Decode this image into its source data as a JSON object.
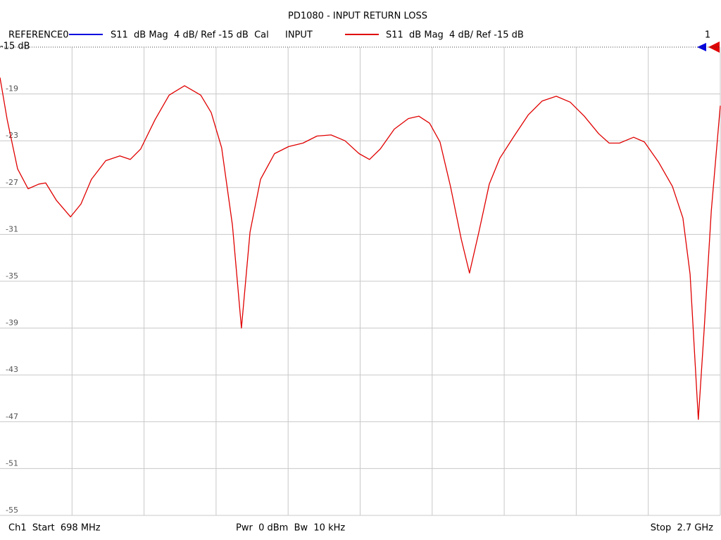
{
  "chart_data": {
    "type": "line",
    "title": "PD1080 - INPUT RETURN LOSS",
    "series": [
      {
        "name": "REFERENCE0",
        "color": "#0000e0",
        "label": "S11  dB Mag  4 dB/ Ref -15 dB  Cal"
      },
      {
        "name": "INPUT",
        "color": "#e00000",
        "label": "S11  dB Mag  4 dB/ Ref -15 dB",
        "values": [
          -17.6,
          -21.2,
          -25.4,
          -27.1,
          -26.7,
          -26.6,
          -28.1,
          -29.5,
          -28.4,
          -26.3,
          -24.7,
          -24.3,
          -24.6,
          -23.7,
          -21.2,
          -19.1,
          -18.3,
          -19.1,
          -20.6,
          -23.6,
          -30.2,
          -39.0,
          -30.8,
          -26.3,
          -24.1,
          -23.5,
          -23.2,
          -22.6,
          -22.5,
          -23.0,
          -24.1,
          -24.6,
          -23.7,
          -22.0,
          -21.1,
          -20.9,
          -21.5,
          -23.1,
          -26.9,
          -31.4,
          -34.3,
          -30.8,
          -26.7,
          -24.5,
          -22.6,
          -20.8,
          -19.6,
          -19.2,
          -19.7,
          -20.9,
          -22.4,
          -23.2,
          -23.2,
          -22.7,
          -23.1,
          -24.8,
          -26.9,
          -29.6,
          -34.4,
          -46.8,
          -39.2,
          -29.0,
          -20.0
        ]
      }
    ],
    "x": [
      698,
      718,
      747,
      776,
      806,
      825,
      855,
      894,
      923,
      952,
      992,
      1031,
      1060,
      1089,
      1129,
      1168,
      1211,
      1256,
      1285,
      1314,
      1344,
      1369,
      1393,
      1422,
      1461,
      1500,
      1540,
      1579,
      1618,
      1657,
      1696,
      1725,
      1755,
      1794,
      1833,
      1862,
      1892,
      1921,
      1950,
      1980,
      2003,
      2029,
      2058,
      2087,
      2127,
      2166,
      2205,
      2244,
      2283,
      2322,
      2362,
      2391,
      2420,
      2459,
      2489,
      2528,
      2567,
      2596,
      2616,
      2639,
      2655,
      2675,
      2700
    ],
    "xlim": [
      698,
      2700
    ],
    "ylim": [
      -15,
      -55
    ],
    "yticks": [
      {
        "value": -15,
        "label": "-15 dB"
      },
      -19,
      -23,
      -27,
      -31,
      -35,
      -39,
      -43,
      -47,
      -51,
      -55
    ],
    "grid": true,
    "marker_label": "1",
    "footer": [
      "Ch1  Start  698 MHz",
      "Pwr  0 dBm  Bw  10 kHz",
      "Stop  2.7 GHz"
    ]
  }
}
